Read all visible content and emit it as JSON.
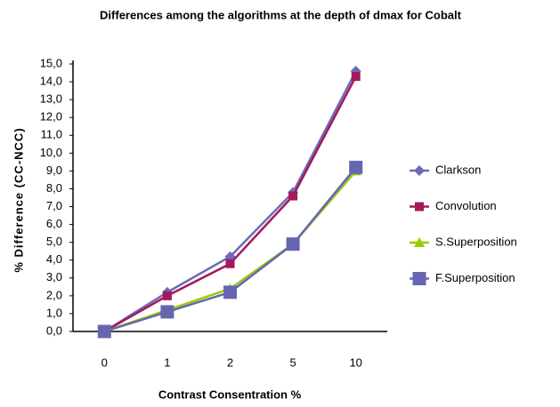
{
  "chart_data": {
    "type": "line",
    "title": "Differences among the algorithms at the depth of dmax for Cobalt",
    "x_label": "Contrast Consentration %",
    "y_label": "% Difference (CC-NCC)",
    "categories": [
      "0",
      "1",
      "2",
      "5",
      "10"
    ],
    "series": [
      {
        "name": "Clarkson",
        "color": "#6b6bb8",
        "marker": "diamond",
        "values": [
          0,
          2.2,
          4.2,
          7.8,
          14.6
        ]
      },
      {
        "name": "Convolution",
        "color": "#a3195b",
        "marker": "square",
        "values": [
          0,
          2.0,
          3.8,
          7.6,
          14.3
        ]
      },
      {
        "name": "S.Superposition",
        "color": "#99cc00",
        "marker": "triangle",
        "values": [
          0,
          1.2,
          2.4,
          4.9,
          9.0
        ]
      },
      {
        "name": "F.Superposition",
        "color": "#6666b0",
        "marker": "bigsquare",
        "values": [
          0,
          1.1,
          2.2,
          4.9,
          9.2
        ]
      }
    ],
    "ylim": [
      0,
      15
    ],
    "yticks": [
      {
        "value": 0,
        "label": "0,0"
      },
      {
        "value": 1,
        "label": "1,0"
      },
      {
        "value": 2,
        "label": "2,0"
      },
      {
        "value": 3,
        "label": "3,0"
      },
      {
        "value": 4,
        "label": "4,0"
      },
      {
        "value": 5,
        "label": "5,0"
      },
      {
        "value": 6,
        "label": "6,0"
      },
      {
        "value": 7,
        "label": "7,0"
      },
      {
        "value": 8,
        "label": "8,0"
      },
      {
        "value": 9,
        "label": "9,0"
      },
      {
        "value": 10,
        "label": "10,0"
      },
      {
        "value": 11,
        "label": "11,0"
      },
      {
        "value": 12,
        "label": "12,0"
      },
      {
        "value": 13,
        "label": "13,0"
      },
      {
        "value": 14,
        "label": "14,0"
      },
      {
        "value": 15,
        "label": "15,0"
      }
    ],
    "legend": "right"
  }
}
